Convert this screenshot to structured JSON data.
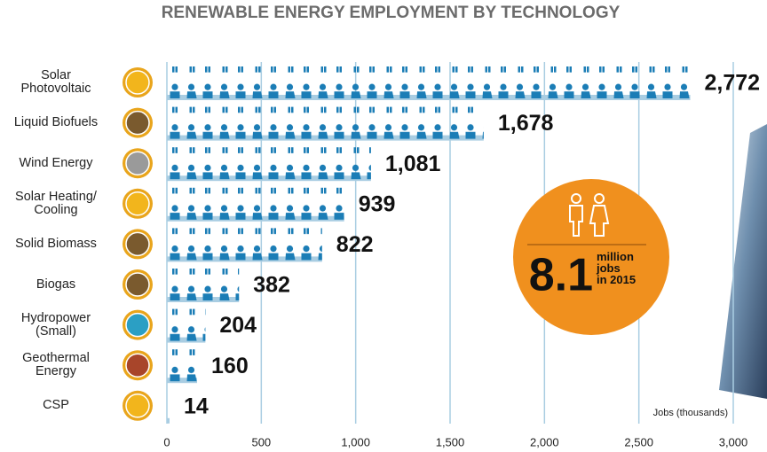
{
  "chart_data": {
    "type": "bar",
    "orientation": "horizontal",
    "title": "RENEWABLE ENERGY EMPLOYMENT BY TECHNOLOGY",
    "categories": [
      "Solar\nPhotovoltaic",
      "Liquid Biofuels",
      "Wind Energy",
      "Solar Heating/\nCooling",
      "Solid Biomass",
      "Biogas",
      "Hydropower\n(Small)",
      "Geothermal\nEnergy",
      "CSP"
    ],
    "values": [
      2772,
      1678,
      1081,
      939,
      822,
      382,
      204,
      160,
      14
    ],
    "value_labels": [
      "2,772",
      "1,678",
      "1,081",
      "939",
      "822",
      "382",
      "204",
      "160",
      "14"
    ],
    "color": "#1b7db6",
    "xlim": [
      0,
      3000
    ],
    "xticks": [
      0,
      {
        "value": 500,
        "label": "500"
      },
      {
        "value": 1000,
        "label": "1,000"
      },
      {
        "value": 1500,
        "label": "1,500"
      },
      {
        "value": 2000,
        "label": "2,000"
      },
      {
        "value": 2500,
        "label": "2,500"
      },
      {
        "value": 3000,
        "label": "3,000"
      }
    ],
    "xlabel": "Jobs (thousands)",
    "grid": true,
    "annotation": {
      "number": "8.1",
      "text": "million\njobs\nin 2015"
    }
  }
}
